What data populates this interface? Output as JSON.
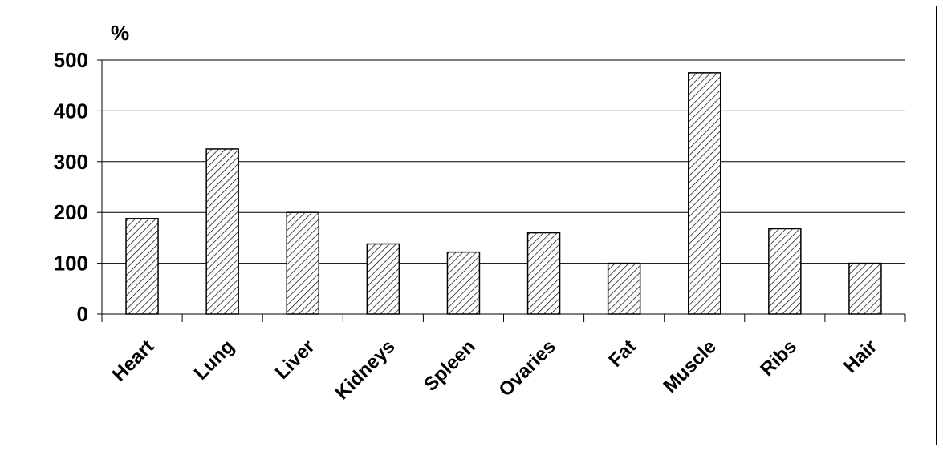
{
  "chart_data": {
    "type": "bar",
    "title": "",
    "xlabel": "",
    "ylabel": "%",
    "ylim": [
      0,
      500
    ],
    "yticks": [
      0,
      100,
      200,
      300,
      400,
      500
    ],
    "grid": true,
    "categories": [
      "Heart",
      "Lung",
      "Liver",
      "Kidneys",
      "Spleen",
      "Ovaries",
      "Fat",
      "Muscle",
      "Ribs",
      "Hair"
    ],
    "values": [
      188,
      325,
      200,
      138,
      122,
      160,
      100,
      475,
      168,
      100
    ],
    "bar_fill": "diagonal-hatch",
    "bar_color": "#000000",
    "background": "#ffffff"
  }
}
